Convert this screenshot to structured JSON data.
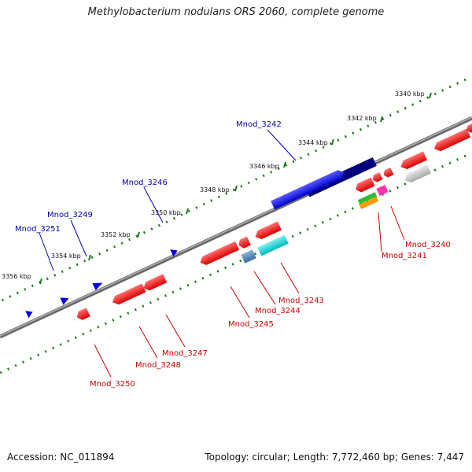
{
  "title": "Methylobacterium nodulans ORS 2060, complete genome",
  "accession": "Accession: NC_011894",
  "summary": "Topology: circular; Length: 7,772,460 bp; Genes: 7,447",
  "colors": {
    "backbone": "#808080",
    "tick": "#1e7a1e",
    "forward_gene": "#0000ee",
    "reverse_gene": "#ee0000",
    "forward_label": "#0000aa",
    "reverse_label": "#cc0000"
  },
  "kbp_labels": [
    "3340 kbp",
    "3342 kbp",
    "3344 kbp",
    "3346 kbp",
    "3348 kbp",
    "3350 kbp",
    "3352 kbp",
    "3354 kbp",
    "3356 kbp"
  ],
  "forward_genes": [
    "Mnod_3242",
    "Mnod_3246",
    "Mnod_3249",
    "Mnod_3251"
  ],
  "reverse_genes": [
    "Mnod_3240",
    "Mnod_3241",
    "Mnod_3243",
    "Mnod_3244",
    "Mnod_3245",
    "Mnod_3247",
    "Mnod_3248",
    "Mnod_3250"
  ]
}
